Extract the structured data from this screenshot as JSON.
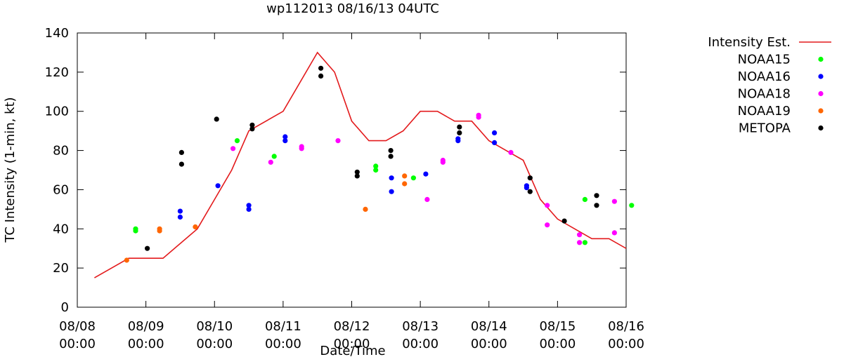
{
  "chart_data": {
    "type": "scatter",
    "title": "wp112013 08/16/13 04UTC",
    "xlabel": "Date/Time",
    "ylabel": "TC Intensity (1-min, kt)",
    "x_unit": "days since 08/08 00:00",
    "xlim": [
      0,
      8
    ],
    "ylim": [
      0,
      140
    ],
    "grid": false,
    "legend_position": "top-right outside",
    "x_ticks": [
      {
        "value": 0,
        "date": "08/08",
        "time": "00:00"
      },
      {
        "value": 1,
        "date": "08/09",
        "time": "00:00"
      },
      {
        "value": 2,
        "date": "08/10",
        "time": "00:00"
      },
      {
        "value": 3,
        "date": "08/11",
        "time": "00:00"
      },
      {
        "value": 4,
        "date": "08/12",
        "time": "00:00"
      },
      {
        "value": 5,
        "date": "08/13",
        "time": "00:00"
      },
      {
        "value": 6,
        "date": "08/14",
        "time": "00:00"
      },
      {
        "value": 7,
        "date": "08/15",
        "time": "00:00"
      },
      {
        "value": 8,
        "date": "08/16",
        "time": "00:00"
      }
    ],
    "y_ticks": [
      "0",
      "20",
      "40",
      "60",
      "80",
      "100",
      "120",
      "140"
    ],
    "line": {
      "name": "Intensity Est.",
      "color": "#e31a1c",
      "points": [
        [
          0.25,
          15
        ],
        [
          0.75,
          25
        ],
        [
          1.25,
          25
        ],
        [
          1.75,
          40
        ],
        [
          2.0,
          55
        ],
        [
          2.25,
          70
        ],
        [
          2.5,
          90
        ],
        [
          3.0,
          100
        ],
        [
          3.5,
          130
        ],
        [
          3.75,
          120
        ],
        [
          4.0,
          95
        ],
        [
          4.25,
          85
        ],
        [
          4.5,
          85
        ],
        [
          4.75,
          90
        ],
        [
          5.0,
          100
        ],
        [
          5.25,
          100
        ],
        [
          5.5,
          95
        ],
        [
          5.75,
          95
        ],
        [
          6.0,
          85
        ],
        [
          6.25,
          80
        ],
        [
          6.5,
          75
        ],
        [
          6.75,
          55
        ],
        [
          7.0,
          45
        ],
        [
          7.25,
          40
        ],
        [
          7.5,
          35
        ],
        [
          7.75,
          35
        ],
        [
          8.0,
          30
        ]
      ]
    },
    "series": [
      {
        "name": "NOAA15",
        "color": "#00ff00",
        "points": [
          [
            0.85,
            40
          ],
          [
            0.85,
            39
          ],
          [
            2.33,
            85
          ],
          [
            2.87,
            77
          ],
          [
            4.35,
            72
          ],
          [
            4.35,
            70
          ],
          [
            4.9,
            66
          ],
          [
            7.4,
            55
          ],
          [
            7.4,
            33
          ],
          [
            8.08,
            52
          ]
        ]
      },
      {
        "name": "NOAA16",
        "color": "#0000ff",
        "points": [
          [
            1.5,
            49
          ],
          [
            1.5,
            46
          ],
          [
            2.05,
            62
          ],
          [
            2.5,
            52
          ],
          [
            2.5,
            50
          ],
          [
            3.03,
            87
          ],
          [
            3.03,
            85
          ],
          [
            4.58,
            66
          ],
          [
            4.58,
            59
          ],
          [
            5.08,
            68
          ],
          [
            5.55,
            86
          ],
          [
            5.55,
            85
          ],
          [
            6.08,
            89
          ],
          [
            6.08,
            84
          ],
          [
            6.55,
            62
          ],
          [
            6.55,
            61
          ]
        ]
      },
      {
        "name": "NOAA18",
        "color": "#ff00ff",
        "points": [
          [
            2.27,
            81
          ],
          [
            2.82,
            74
          ],
          [
            3.27,
            82
          ],
          [
            3.27,
            81
          ],
          [
            3.8,
            85
          ],
          [
            5.1,
            55
          ],
          [
            5.33,
            75
          ],
          [
            5.33,
            74
          ],
          [
            5.85,
            98
          ],
          [
            5.85,
            97
          ],
          [
            6.32,
            79
          ],
          [
            6.85,
            52
          ],
          [
            6.85,
            42
          ],
          [
            7.32,
            37
          ],
          [
            7.32,
            33
          ],
          [
            7.83,
            54
          ],
          [
            7.83,
            38
          ]
        ]
      },
      {
        "name": "NOAA19",
        "color": "#ff6600",
        "points": [
          [
            0.72,
            24
          ],
          [
            1.2,
            40
          ],
          [
            1.2,
            39
          ],
          [
            1.72,
            41
          ],
          [
            4.2,
            50
          ],
          [
            4.77,
            67
          ],
          [
            4.77,
            63
          ]
        ]
      },
      {
        "name": "METOPA",
        "color": "#000000",
        "points": [
          [
            1.02,
            30
          ],
          [
            1.52,
            79
          ],
          [
            1.52,
            73
          ],
          [
            2.03,
            96
          ],
          [
            2.55,
            93
          ],
          [
            2.55,
            91
          ],
          [
            3.55,
            122
          ],
          [
            3.55,
            118
          ],
          [
            4.08,
            69
          ],
          [
            4.08,
            67
          ],
          [
            4.57,
            80
          ],
          [
            4.57,
            77
          ],
          [
            5.57,
            92
          ],
          [
            5.57,
            89
          ],
          [
            6.6,
            66
          ],
          [
            6.6,
            59
          ],
          [
            7.1,
            44
          ],
          [
            7.57,
            57
          ],
          [
            7.57,
            52
          ]
        ]
      }
    ]
  }
}
